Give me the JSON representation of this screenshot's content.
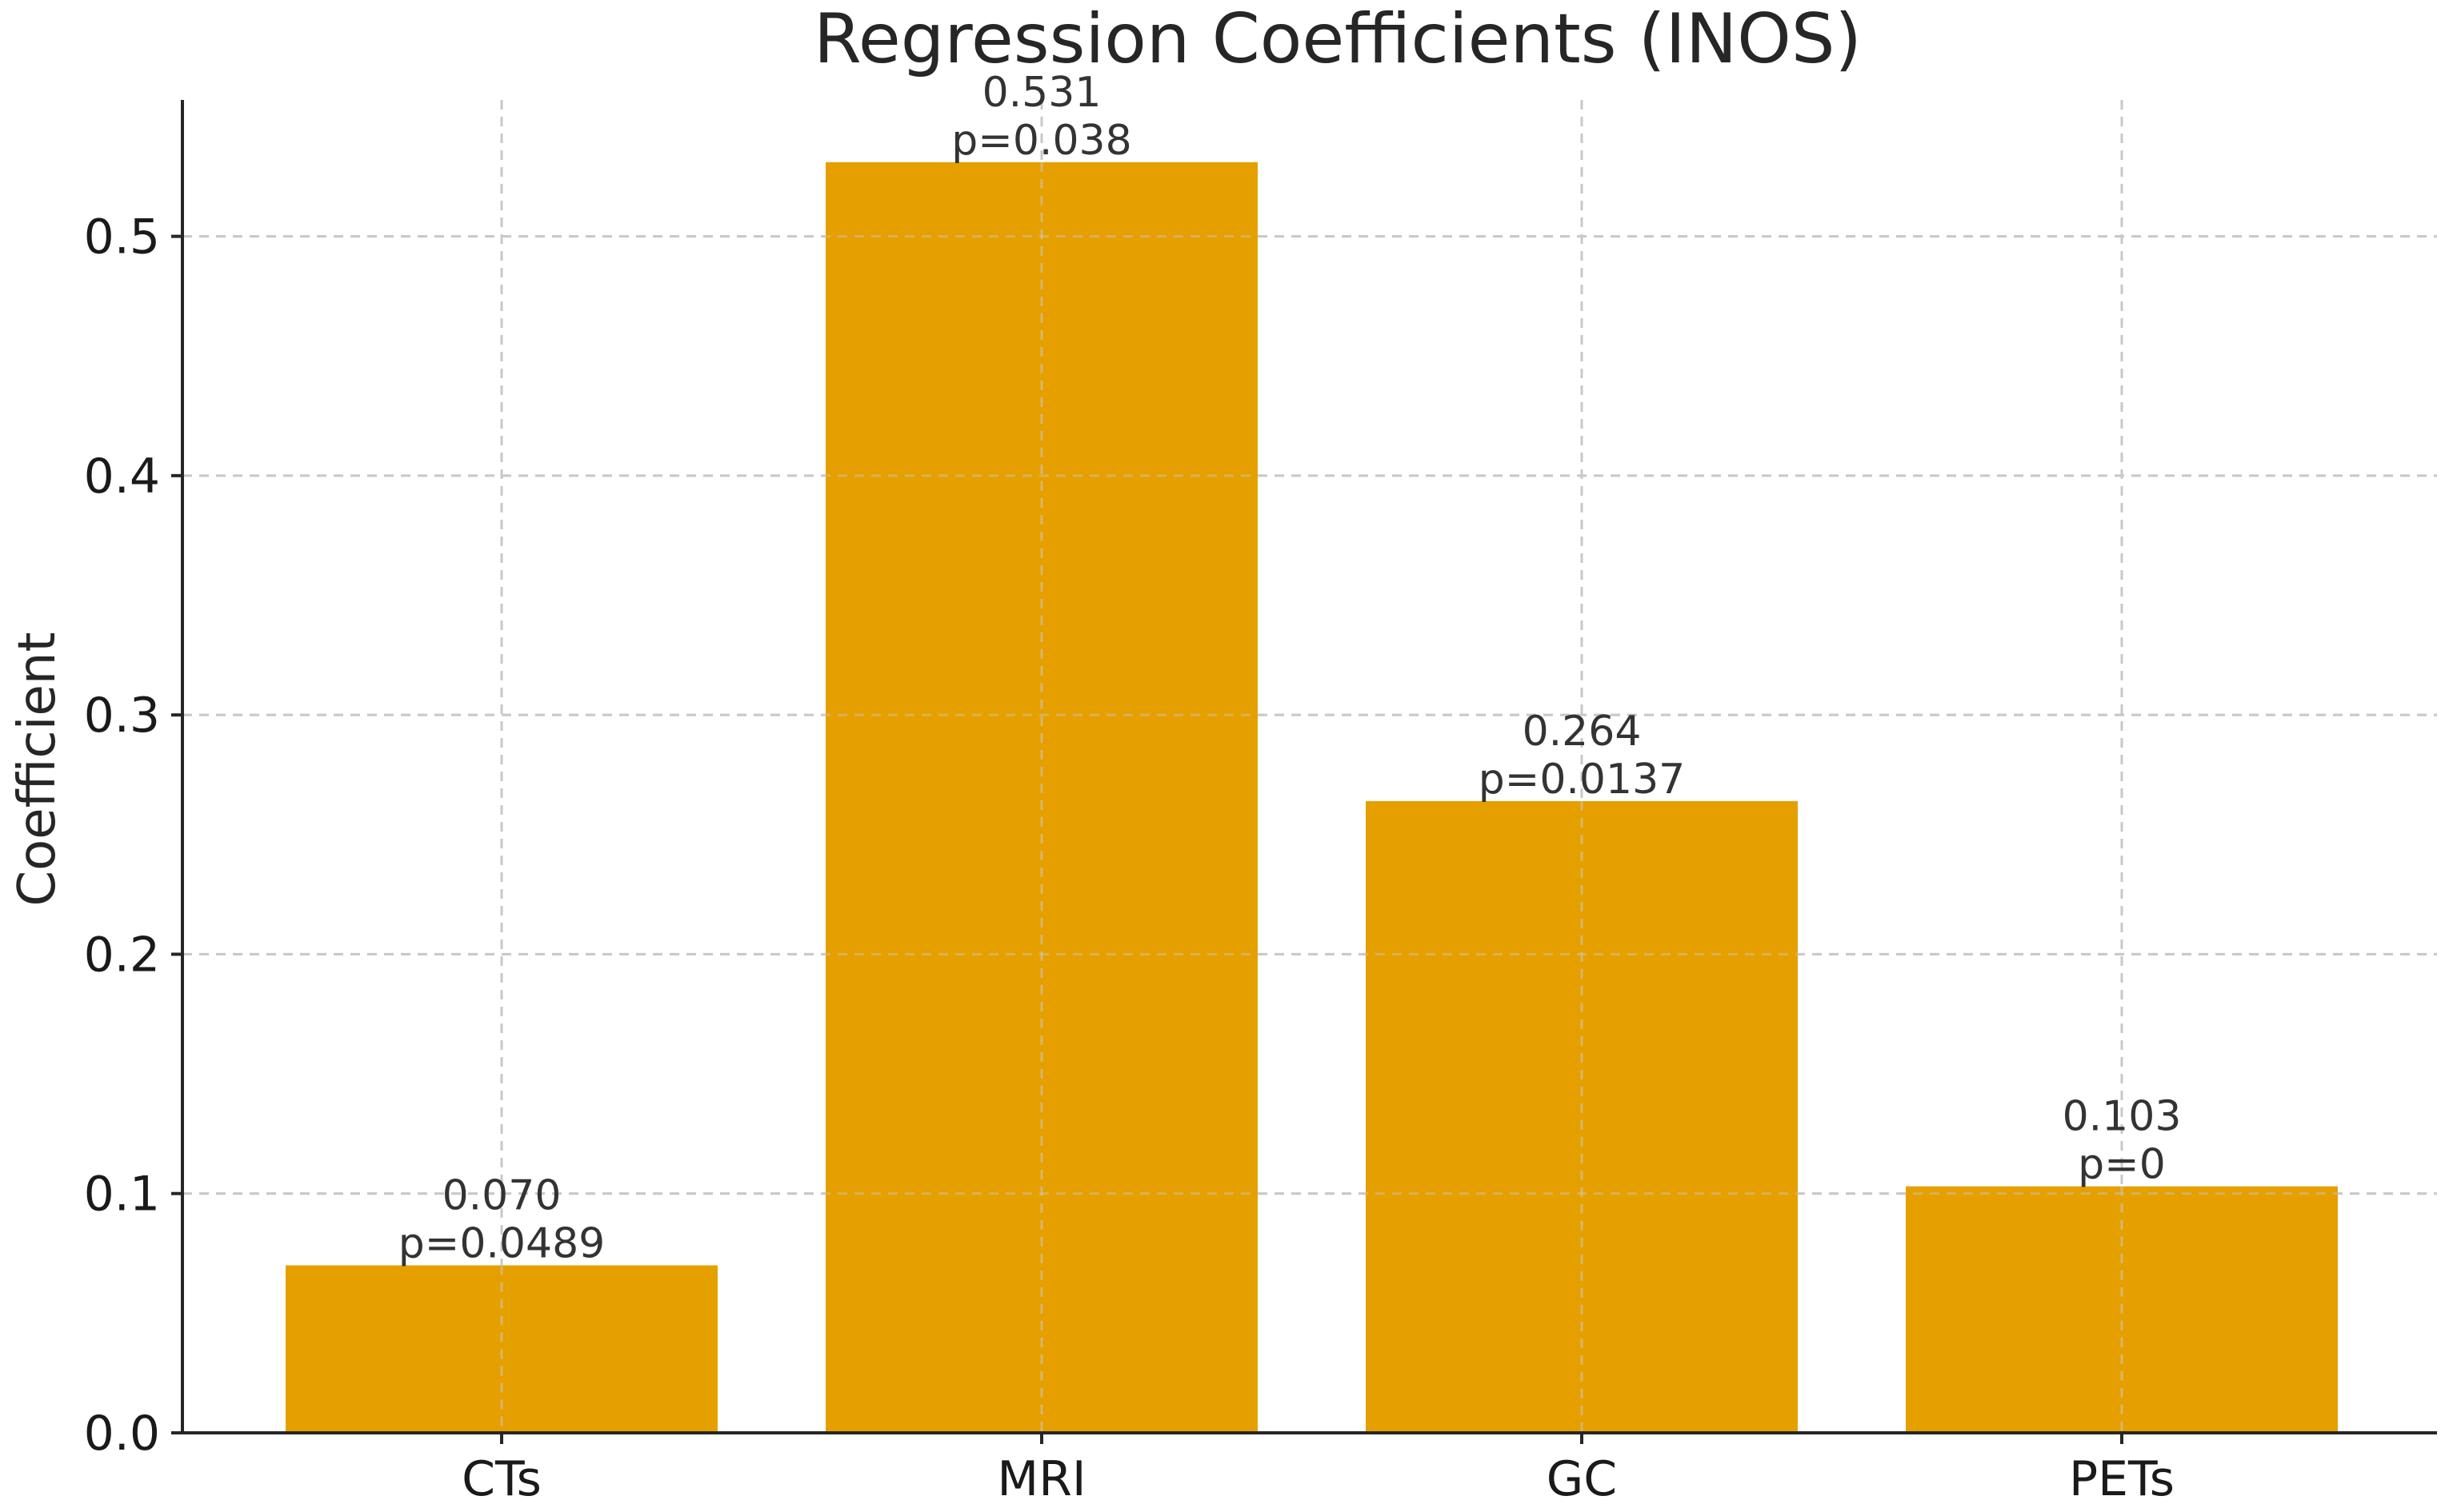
{
  "chart_data": {
    "type": "bar",
    "title": "Regression Coefficients (INOS)",
    "xlabel": "",
    "ylabel": "Coefficient",
    "categories": [
      "CTs",
      "MRI",
      "GC",
      "PETs"
    ],
    "values": [
      0.07,
      0.531,
      0.264,
      0.103
    ],
    "value_labels": [
      "0.070",
      "0.531",
      "0.264",
      "0.103"
    ],
    "p_labels": [
      "p=0.0489",
      "p=0.038",
      "p=0.0137",
      "p=0"
    ],
    "ylim": [
      0,
      0.557
    ],
    "yticks": [
      0.0,
      0.1,
      0.2,
      0.3,
      0.4,
      0.5
    ],
    "ytick_labels": [
      "0.0",
      "0.1",
      "0.2",
      "0.3",
      "0.4",
      "0.5"
    ],
    "grid": true,
    "bar_color": "#e5a000"
  }
}
